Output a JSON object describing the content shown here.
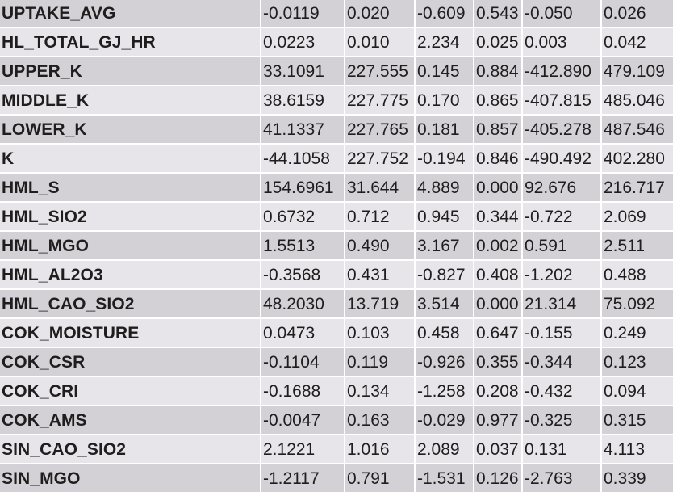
{
  "table": {
    "rows": [
      [
        "UPTAKE_AVG",
        "-0.0119",
        "0.020",
        "-0.609",
        "0.543",
        "-0.050",
        "0.026"
      ],
      [
        "HL_TOTAL_GJ_HR",
        "0.0223",
        "0.010",
        "2.234",
        "0.025",
        "0.003",
        "0.042"
      ],
      [
        "UPPER_K",
        "33.1091",
        "227.555",
        "0.145",
        "0.884",
        "-412.890",
        "479.109"
      ],
      [
        "MIDDLE_K",
        "38.6159",
        "227.775",
        "0.170",
        "0.865",
        "-407.815",
        "485.046"
      ],
      [
        "LOWER_K",
        "41.1337",
        "227.765",
        "0.181",
        "0.857",
        "-405.278",
        "487.546"
      ],
      [
        "K",
        "-44.1058",
        "227.752",
        "-0.194",
        "0.846",
        "-490.492",
        "402.280"
      ],
      [
        "HML_S",
        "154.6961",
        "31.644",
        "4.889",
        "0.000",
        "92.676",
        "216.717"
      ],
      [
        "HML_SIO2",
        "0.6732",
        "0.712",
        "0.945",
        "0.344",
        "-0.722",
        "2.069"
      ],
      [
        "HML_MGO",
        "1.5513",
        "0.490",
        "3.167",
        "0.002",
        "0.591",
        "2.511"
      ],
      [
        "HML_AL2O3",
        "-0.3568",
        "0.431",
        "-0.827",
        "0.408",
        "-1.202",
        "0.488"
      ],
      [
        "HML_CAO_SIO2",
        "48.2030",
        "13.719",
        "3.514",
        "0.000",
        "21.314",
        "75.092"
      ],
      [
        "COK_MOISTURE",
        "0.0473",
        "0.103",
        "0.458",
        "0.647",
        "-0.155",
        "0.249"
      ],
      [
        "COK_CSR",
        "-0.1104",
        "0.119",
        "-0.926",
        "0.355",
        "-0.344",
        "0.123"
      ],
      [
        "COK_CRI",
        "-0.1688",
        "0.134",
        "-1.258",
        "0.208",
        "-0.432",
        "0.094"
      ],
      [
        "COK_AMS",
        "-0.0047",
        "0.163",
        "-0.029",
        "0.977",
        "-0.325",
        "0.315"
      ],
      [
        "SIN_CAO_SIO2",
        "2.1221",
        "1.016",
        "2.089",
        "0.037",
        "0.131",
        "4.113"
      ],
      [
        "SIN_MGO",
        "-1.2117",
        "0.791",
        "-1.531",
        "0.126",
        "-2.763",
        "0.339"
      ]
    ]
  },
  "colors": {
    "row_dark": "#d3d0d6",
    "row_light": "#e7e5e9",
    "text": "#1e1e1e"
  }
}
